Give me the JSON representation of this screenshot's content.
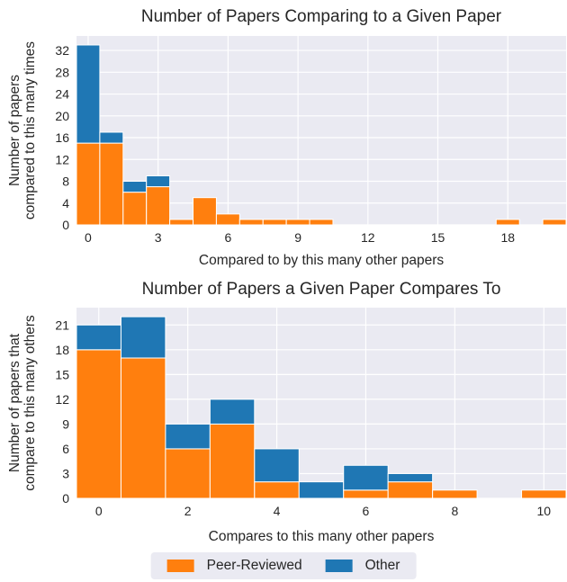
{
  "colors": {
    "peer_reviewed": "#ff7f0e",
    "other": "#1f77b4",
    "axes_background": "#eaeaf2",
    "grid": "#ffffff",
    "text": "#262626"
  },
  "legend": {
    "items": [
      {
        "label": "Peer-Reviewed",
        "color_key": "peer_reviewed"
      },
      {
        "label": "Other",
        "color_key": "other"
      }
    ],
    "position": "bottom-center"
  },
  "chart_data": [
    {
      "type": "bar",
      "stacked": true,
      "title": "Number of Papers Comparing to a Given Paper",
      "xlabel": "Compared to by this many other papers",
      "ylabel_lines": [
        "Number of papers",
        "compared to this many times"
      ],
      "x": [
        0,
        1,
        2,
        3,
        4,
        5,
        6,
        7,
        8,
        9,
        10,
        18,
        20
      ],
      "series": [
        {
          "name": "Peer-Reviewed",
          "values": [
            15,
            15,
            6,
            7,
            1,
            5,
            2,
            1,
            1,
            1,
            1,
            1,
            1
          ]
        },
        {
          "name": "Other",
          "values": [
            18,
            2,
            2,
            2,
            0,
            0,
            0,
            0,
            0,
            0,
            0,
            0,
            0
          ]
        }
      ],
      "xticks": [
        0,
        3,
        6,
        9,
        12,
        15,
        18
      ],
      "yticks": [
        0,
        4,
        8,
        12,
        16,
        20,
        24,
        28,
        32
      ],
      "xlim": [
        -0.5,
        20.5
      ],
      "ylim": [
        0,
        34.65
      ],
      "grid": true
    },
    {
      "type": "bar",
      "stacked": true,
      "title": "Number of Papers a Given Paper Compares To",
      "xlabel": "Compares to this many other papers",
      "ylabel_lines": [
        "Number of papers that",
        "compare to this many others"
      ],
      "x": [
        0,
        1,
        2,
        3,
        4,
        5,
        6,
        7,
        8,
        10
      ],
      "series": [
        {
          "name": "Peer-Reviewed",
          "values": [
            18,
            17,
            6,
            9,
            2,
            0,
            1,
            2,
            1,
            1
          ]
        },
        {
          "name": "Other",
          "values": [
            3,
            5,
            3,
            3,
            4,
            2,
            3,
            1,
            0,
            0
          ]
        }
      ],
      "xticks": [
        0,
        2,
        4,
        6,
        8,
        10
      ],
      "yticks": [
        0,
        3,
        6,
        9,
        12,
        15,
        18,
        21
      ],
      "xlim": [
        -0.5,
        10.5
      ],
      "ylim": [
        0,
        23.1
      ],
      "grid": true
    }
  ]
}
